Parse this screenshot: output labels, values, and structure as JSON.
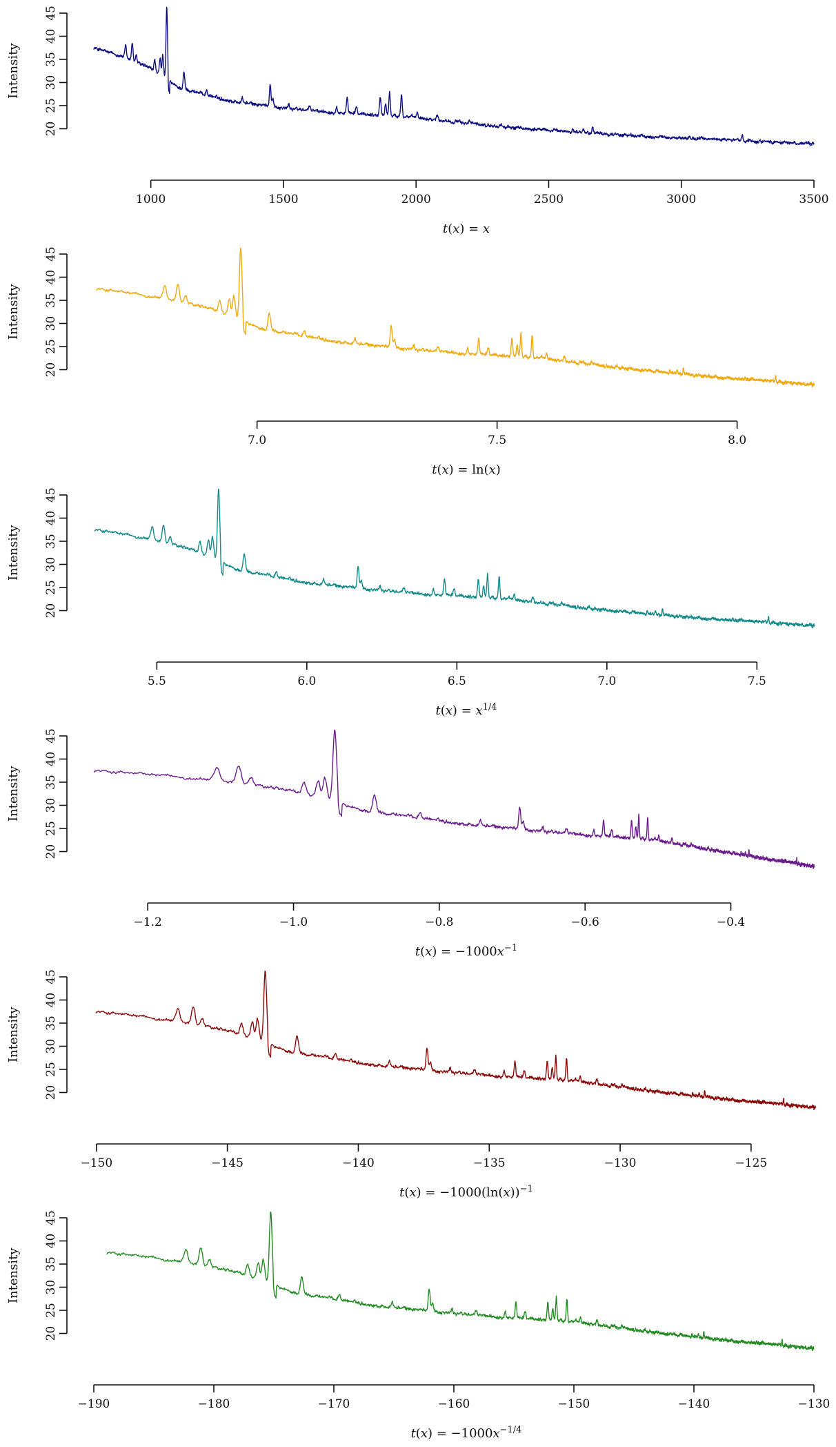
{
  "chart_data": [
    {
      "type": "line",
      "color": "#0d0d80",
      "ylabel": "Intensity",
      "xlabel_parts": [
        [
          "i",
          "t"
        ],
        [
          "r",
          "("
        ],
        [
          "i",
          "x"
        ],
        [
          "r",
          ") = "
        ],
        [
          "i",
          "x"
        ]
      ],
      "yticks": [
        20,
        25,
        30,
        35,
        40,
        45
      ],
      "ylim": [
        15,
        45
      ],
      "xticks": [
        1000,
        1500,
        2000,
        2500,
        3000,
        3500
      ],
      "xtick_labels": [
        "1000",
        "1500",
        "2000",
        "2500",
        "3000",
        "3500"
      ],
      "xlim": [
        785,
        3500
      ],
      "transform": "identity",
      "series": [
        {
          "start": 785,
          "end": 3500,
          "end_value": 16.7
        }
      ]
    },
    {
      "type": "line",
      "color": "#efa90f",
      "ylabel": "Intensity",
      "xlabel_parts": [
        [
          "i",
          "t"
        ],
        [
          "r",
          "("
        ],
        [
          "i",
          "x"
        ],
        [
          "r",
          ") = ln("
        ],
        [
          "i",
          "x"
        ],
        [
          "r",
          ")"
        ]
      ],
      "yticks": [
        20,
        25,
        30,
        35,
        40,
        45
      ],
      "ylim": [
        15,
        45
      ],
      "xticks": [
        7.0,
        7.5,
        8.0
      ],
      "xtick_labels": [
        "7.0",
        "7.5",
        "8.0"
      ],
      "xlim": [
        6.66,
        8.16
      ],
      "transform": "log",
      "series": [
        {
          "start": 785,
          "end": 3500,
          "end_value": 16.7
        }
      ]
    },
    {
      "type": "line",
      "color": "#138a8a",
      "ylabel": "Intensity",
      "xlabel_parts": [
        [
          "i",
          "t"
        ],
        [
          "r",
          "("
        ],
        [
          "i",
          "x"
        ],
        [
          "r",
          ") = "
        ],
        [
          "i",
          "x"
        ],
        [
          "s",
          "1/4"
        ]
      ],
      "yticks": [
        20,
        25,
        30,
        35,
        40,
        45
      ],
      "ylim": [
        15,
        45
      ],
      "xticks": [
        5.5,
        6.0,
        6.5,
        7.0,
        7.5
      ],
      "xtick_labels": [
        "5.5",
        "6.0",
        "6.5",
        "7.0",
        "7.5"
      ],
      "xlim": [
        5.29,
        7.69
      ],
      "transform": "fourth-root",
      "series": [
        {
          "start": 785,
          "end": 3500,
          "end_value": 16.7
        }
      ]
    },
    {
      "type": "line",
      "color": "#6a1b8c",
      "ylabel": "Intensity",
      "xlabel_parts": [
        [
          "i",
          "t"
        ],
        [
          "r",
          "("
        ],
        [
          "i",
          "x"
        ],
        [
          "r",
          ") = −1000"
        ],
        [
          "i",
          "x"
        ],
        [
          "s",
          "−1"
        ]
      ],
      "yticks": [
        20,
        25,
        30,
        35,
        40,
        45
      ],
      "ylim": [
        15,
        45
      ],
      "xticks": [
        -1.2,
        -1.0,
        -0.8,
        -0.6,
        -0.4
      ],
      "xtick_labels": [
        "−1.2",
        "−1.0",
        "−0.8",
        "−0.6",
        "−0.4"
      ],
      "xlim": [
        -1.274,
        -0.286
      ],
      "transform": "negative-reciprocal",
      "series": [
        {
          "start": 785,
          "end": 3500,
          "end_value": 16.7
        }
      ]
    },
    {
      "type": "line",
      "color": "#8b0a0a",
      "ylabel": "Intensity",
      "xlabel_parts": [
        [
          "i",
          "t"
        ],
        [
          "r",
          "("
        ],
        [
          "i",
          "x"
        ],
        [
          "r",
          ") = −1000(ln("
        ],
        [
          "i",
          "x"
        ],
        [
          "r",
          "))"
        ],
        [
          "s",
          "−1"
        ]
      ],
      "yticks": [
        20,
        25,
        30,
        35,
        40,
        45
      ],
      "ylim": [
        15,
        45
      ],
      "xticks": [
        -150,
        -145,
        -140,
        -135,
        -130,
        -125
      ],
      "xtick_labels": [
        "−150",
        "−145",
        "−140",
        "−135",
        "−130",
        "−125"
      ],
      "xlim": [
        -150.1,
        -122.6
      ],
      "transform": "negative-reciprocal-log",
      "series": [
        {
          "start": 785,
          "end": 3500,
          "end_value": 16.7
        }
      ]
    },
    {
      "type": "line",
      "color": "#238b23",
      "ylabel": "Intensity",
      "xlabel_parts": [
        [
          "i",
          "t"
        ],
        [
          "r",
          "("
        ],
        [
          "i",
          "x"
        ],
        [
          "r",
          ") = −1000"
        ],
        [
          "i",
          "x"
        ],
        [
          "s",
          "−1/4"
        ]
      ],
      "yticks": [
        20,
        25,
        30,
        35,
        40,
        45
      ],
      "ylim": [
        15,
        45
      ],
      "xticks": [
        -190,
        -180,
        -170,
        -160,
        -150,
        -140,
        -130
      ],
      "xtick_labels": [
        "−190",
        "−180",
        "−170",
        "−160",
        "−150",
        "−140",
        "−130"
      ],
      "xlim": [
        -190.0,
        -130.0
      ],
      "transform": "negative-reciprocal-fourth-root",
      "series": [
        {
          "start": 785,
          "end": 3500,
          "end_value": 16.7
        }
      ]
    }
  ],
  "spectrum": {
    "x_unit": "original x",
    "baseline_knots": [
      [
        785,
        37.5
      ],
      [
        900,
        35.5
      ],
      [
        1000,
        33.0
      ],
      [
        1100,
        29.0
      ],
      [
        1300,
        26.0
      ],
      [
        1500,
        24.5
      ],
      [
        1700,
        23.5
      ],
      [
        2000,
        22.5
      ],
      [
        2300,
        20.5
      ],
      [
        2600,
        19.3
      ],
      [
        2900,
        18.2
      ],
      [
        3200,
        17.6
      ],
      [
        3500,
        16.7
      ]
    ],
    "peaks": [
      {
        "x": 905,
        "height": 2.5
      },
      {
        "x": 930,
        "height": 4.0
      },
      {
        "x": 945,
        "height": 1.5
      },
      {
        "x": 1015,
        "height": 2.5
      },
      {
        "x": 1035,
        "height": 3.5
      },
      {
        "x": 1045,
        "height": 5.0
      },
      {
        "x": 1060,
        "height": 15.5
      },
      {
        "x": 1125,
        "height": 3.5
      },
      {
        "x": 1210,
        "height": 1.0
      },
      {
        "x": 1345,
        "height": 1.0
      },
      {
        "x": 1450,
        "height": 5.0
      },
      {
        "x": 1460,
        "height": 2.0
      },
      {
        "x": 1520,
        "height": 0.8
      },
      {
        "x": 1600,
        "height": 0.8
      },
      {
        "x": 1700,
        "height": 1.5
      },
      {
        "x": 1740,
        "height": 3.0
      },
      {
        "x": 1775,
        "height": 1.5
      },
      {
        "x": 1865,
        "height": 4.0
      },
      {
        "x": 1885,
        "height": 2.5
      },
      {
        "x": 1900,
        "height": 5.0
      },
      {
        "x": 1945,
        "height": 5.0
      },
      {
        "x": 2005,
        "height": 1.0
      },
      {
        "x": 2080,
        "height": 1.0
      },
      {
        "x": 2200,
        "height": 0.6
      },
      {
        "x": 2320,
        "height": 0.6
      },
      {
        "x": 2590,
        "height": 0.7
      },
      {
        "x": 2630,
        "height": 0.8
      },
      {
        "x": 2665,
        "height": 1.2
      },
      {
        "x": 2920,
        "height": 0.4
      },
      {
        "x": 3230,
        "height": 0.8
      }
    ]
  }
}
